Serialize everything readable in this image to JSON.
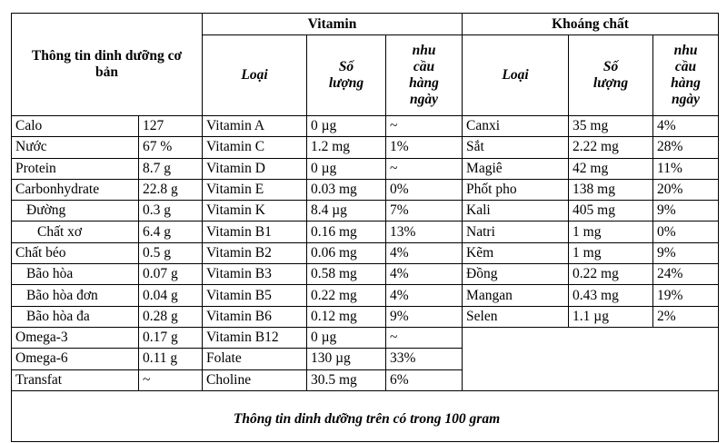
{
  "header": {
    "basic": "Thông tin dinh dưỡng cơ bản",
    "vitamin": "Vitamin",
    "mineral": "Khoáng chất",
    "vitamin_columns": [
      "Loại",
      "Số lượng",
      "nhu cầu hàng ngày"
    ],
    "mineral_columns": [
      "Loại",
      "Số lượng",
      "nhu cầu hàng ngày"
    ]
  },
  "basic": [
    [
      "Calo",
      "127"
    ],
    [
      "Nước",
      "67 %"
    ],
    [
      "Protein",
      "8.7 g"
    ],
    [
      "Carbonhydrate",
      "22.8 g"
    ],
    [
      "Đường",
      "0.3 g"
    ],
    [
      "Chất xơ",
      "6.4 g"
    ],
    [
      "Chất béo",
      "0.5 g"
    ],
    [
      "Bão hòa",
      "0.07 g"
    ],
    [
      "Bão hòa đơn",
      "0.04 g"
    ],
    [
      "Bão hòa đa",
      "0.28 g"
    ],
    [
      "Omega-3",
      "0.17 g"
    ],
    [
      "Omega-6",
      "0.11 g"
    ],
    [
      "Transfat",
      "~"
    ]
  ],
  "vitamins": [
    [
      "Vitamin A",
      "0 µg",
      "~"
    ],
    [
      "Vitamin C",
      "1.2 mg",
      "1%"
    ],
    [
      "Vitamin D",
      "0 µg",
      "~"
    ],
    [
      "Vitamin E",
      "0.03 mg",
      "0%"
    ],
    [
      "Vitamin K",
      "8.4 µg",
      "7%"
    ],
    [
      "Vitamin B1",
      "0.16 mg",
      "13%"
    ],
    [
      "Vitamin B2",
      "0.06 mg",
      "4%"
    ],
    [
      "Vitamin B3",
      "0.58 mg",
      "4%"
    ],
    [
      "Vitamin B5",
      "0.22 mg",
      "4%"
    ],
    [
      "Vitamin B6",
      "0.12 mg",
      "9%"
    ],
    [
      "Vitamin B12",
      "0 µg",
      "~"
    ],
    [
      "Folate",
      "130 µg",
      "33%"
    ],
    [
      "Choline",
      "30.5 mg",
      "6%"
    ]
  ],
  "minerals": [
    [
      "Canxi",
      "35 mg",
      "4%"
    ],
    [
      "Sắt",
      "2.22 mg",
      "28%"
    ],
    [
      "Magiê",
      "42 mg",
      "11%"
    ],
    [
      "Phốt pho",
      "138 mg",
      "20%"
    ],
    [
      "Kali",
      "405 mg",
      "9%"
    ],
    [
      "Natri",
      "1 mg",
      "0%"
    ],
    [
      "Kẽm",
      "1 mg",
      "9%"
    ],
    [
      "Đồng",
      "0.22 mg",
      "24%"
    ],
    [
      "Mangan",
      "0.43 mg",
      "19%"
    ],
    [
      "Selen",
      "1.1 µg",
      "2%"
    ]
  ],
  "footer": "Thông tin dinh dưỡng trên có trong 100 gram"
}
